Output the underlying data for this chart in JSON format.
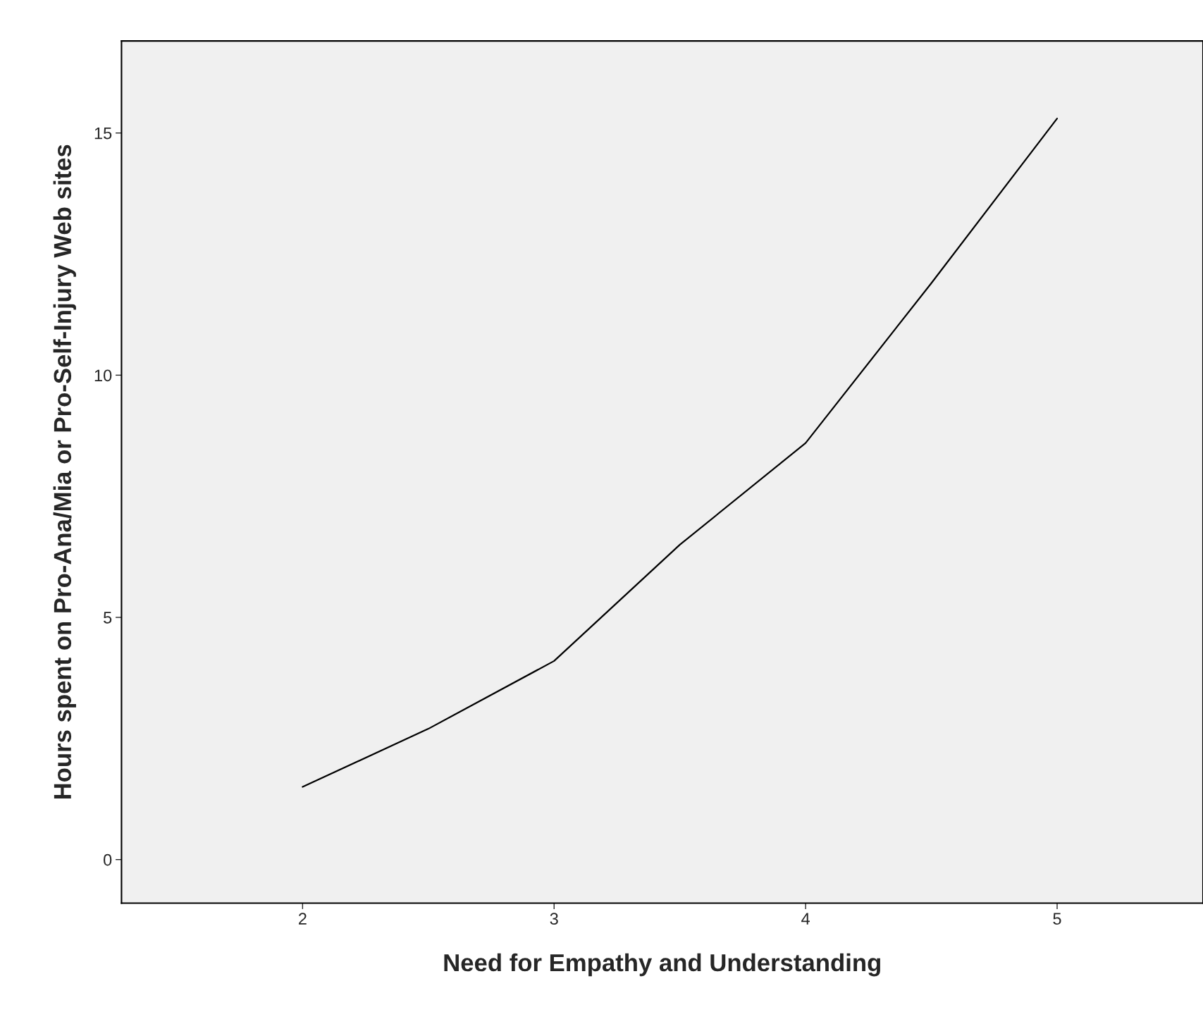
{
  "chart_data": {
    "type": "line",
    "xlabel": "Need for Empathy and Understanding",
    "ylabel": "Hours spent on Pro-Ana/Mia or Pro-Self-Injury Web sites",
    "x": [
      2,
      2.5,
      3,
      3.5,
      4,
      4.5,
      5
    ],
    "series": [
      {
        "color": "#000000",
        "values": [
          1.5,
          2.7,
          4.1,
          6.5,
          8.6,
          11.9,
          15.3
        ]
      }
    ],
    "xlim": [
      1.28,
      5.58
    ],
    "xticks": [
      2,
      3,
      4,
      5
    ],
    "ylim": [
      -0.9,
      16.9
    ],
    "yticks": [
      0,
      5,
      10,
      15
    ],
    "grid": false,
    "legend": false,
    "marker": "none",
    "line_style": "solid"
  }
}
